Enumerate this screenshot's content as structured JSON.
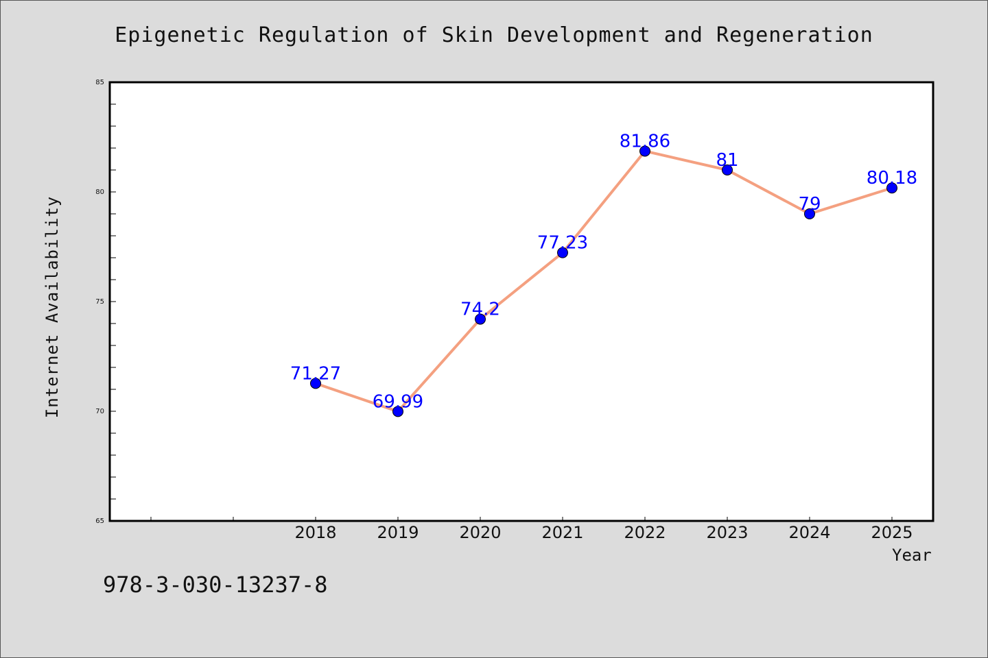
{
  "colors": {
    "background": "#dcdcdc",
    "plot_background": "#ffffff",
    "line": "#f4a080",
    "marker": "#0000ff",
    "data_label": "#0000ff"
  },
  "footer": {
    "code": "978-3-030-13237-8"
  },
  "chart_data": {
    "type": "line",
    "title": "Epigenetic Regulation of Skin Development and Regeneration",
    "xlabel": "Year",
    "ylabel": "Internet Availability",
    "x": [
      "2018",
      "2019",
      "2020",
      "2021",
      "2022",
      "2023",
      "2024",
      "2025"
    ],
    "series": [
      {
        "values": [
          71.27,
          69.99,
          74.2,
          77.23,
          81.86,
          81,
          79,
          80.18
        ]
      }
    ],
    "data_labels": [
      "71.27",
      "69.99",
      "74.2",
      "77.23",
      "81.86",
      "81",
      "79",
      "80.18"
    ],
    "ylim": [
      65,
      85
    ],
    "yticks": [
      65,
      70,
      75,
      80,
      85
    ],
    "x_category_range": [
      2015.5,
      2025.5
    ],
    "grid": false,
    "legend": "none"
  }
}
